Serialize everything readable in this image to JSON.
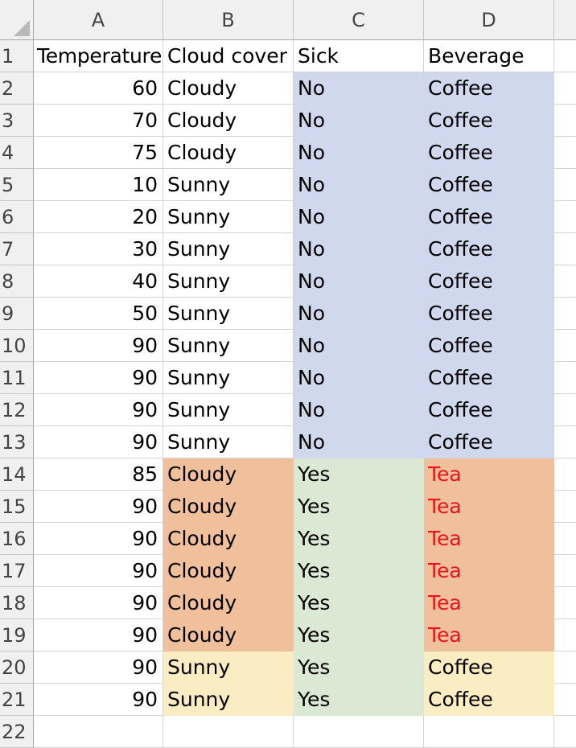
{
  "columns": [
    "A",
    "B",
    "C",
    "D"
  ],
  "rows": [
    {
      "num": "1",
      "cells": [
        "Temperature",
        "Cloud cover",
        "Sick",
        "Beverage"
      ],
      "fills": [
        "",
        "",
        "",
        ""
      ]
    },
    {
      "num": "2",
      "cells": [
        "60",
        "Cloudy",
        "No",
        "Coffee"
      ],
      "fills": [
        "",
        "",
        "#d0d8ee",
        "#d0d8ee"
      ]
    },
    {
      "num": "3",
      "cells": [
        "70",
        "Cloudy",
        "No",
        "Coffee"
      ],
      "fills": [
        "",
        "",
        "#d0d8ee",
        "#d0d8ee"
      ]
    },
    {
      "num": "4",
      "cells": [
        "75",
        "Cloudy",
        "No",
        "Coffee"
      ],
      "fills": [
        "",
        "",
        "#d0d8ee",
        "#d0d8ee"
      ]
    },
    {
      "num": "5",
      "cells": [
        "10",
        "Sunny",
        "No",
        "Coffee"
      ],
      "fills": [
        "",
        "",
        "#d0d8ee",
        "#d0d8ee"
      ]
    },
    {
      "num": "6",
      "cells": [
        "20",
        "Sunny",
        "No",
        "Coffee"
      ],
      "fills": [
        "",
        "",
        "#d0d8ee",
        "#d0d8ee"
      ]
    },
    {
      "num": "7",
      "cells": [
        "30",
        "Sunny",
        "No",
        "Coffee"
      ],
      "fills": [
        "",
        "",
        "#d0d8ee",
        "#d0d8ee"
      ]
    },
    {
      "num": "8",
      "cells": [
        "40",
        "Sunny",
        "No",
        "Coffee"
      ],
      "fills": [
        "",
        "",
        "#d0d8ee",
        "#d0d8ee"
      ]
    },
    {
      "num": "9",
      "cells": [
        "50",
        "Sunny",
        "No",
        "Coffee"
      ],
      "fills": [
        "",
        "",
        "#d0d8ee",
        "#d0d8ee"
      ]
    },
    {
      "num": "10",
      "cells": [
        "90",
        "Sunny",
        "No",
        "Coffee"
      ],
      "fills": [
        "",
        "",
        "#d0d8ee",
        "#d0d8ee"
      ]
    },
    {
      "num": "11",
      "cells": [
        "90",
        "Sunny",
        "No",
        "Coffee"
      ],
      "fills": [
        "",
        "",
        "#d0d8ee",
        "#d0d8ee"
      ]
    },
    {
      "num": "12",
      "cells": [
        "90",
        "Sunny",
        "No",
        "Coffee"
      ],
      "fills": [
        "",
        "",
        "#d0d8ee",
        "#d0d8ee"
      ]
    },
    {
      "num": "13",
      "cells": [
        "90",
        "Sunny",
        "No",
        "Coffee"
      ],
      "fills": [
        "",
        "",
        "#d0d8ee",
        "#d0d8ee"
      ]
    },
    {
      "num": "14",
      "cells": [
        "85",
        "Cloudy",
        "Yes",
        "Tea"
      ],
      "fills": [
        "",
        "#f0bf9b",
        "#dbe8d3",
        "#f0bf9b"
      ]
    },
    {
      "num": "15",
      "cells": [
        "90",
        "Cloudy",
        "Yes",
        "Tea"
      ],
      "fills": [
        "",
        "#f0bf9b",
        "#dbe8d3",
        "#f0bf9b"
      ]
    },
    {
      "num": "16",
      "cells": [
        "90",
        "Cloudy",
        "Yes",
        "Tea"
      ],
      "fills": [
        "",
        "#f0bf9b",
        "#dbe8d3",
        "#f0bf9b"
      ]
    },
    {
      "num": "17",
      "cells": [
        "90",
        "Cloudy",
        "Yes",
        "Tea"
      ],
      "fills": [
        "",
        "#f0bf9b",
        "#dbe8d3",
        "#f0bf9b"
      ]
    },
    {
      "num": "18",
      "cells": [
        "90",
        "Cloudy",
        "Yes",
        "Tea"
      ],
      "fills": [
        "",
        "#f0bf9b",
        "#dbe8d3",
        "#f0bf9b"
      ]
    },
    {
      "num": "19",
      "cells": [
        "90",
        "Cloudy",
        "Yes",
        "Tea"
      ],
      "fills": [
        "",
        "#f0bf9b",
        "#dbe8d3",
        "#f0bf9b"
      ]
    },
    {
      "num": "20",
      "cells": [
        "90",
        "Sunny",
        "Yes",
        "Coffee"
      ],
      "fills": [
        "",
        "#faedc4",
        "#dbe8d3",
        "#faedc4"
      ]
    },
    {
      "num": "21",
      "cells": [
        "90",
        "Sunny",
        "Yes",
        "Coffee"
      ],
      "fills": [
        "",
        "#faedc4",
        "#dbe8d3",
        "#faedc4"
      ]
    },
    {
      "num": "22",
      "cells": [
        "",
        "",
        "",
        ""
      ],
      "fills": [
        "",
        "",
        "",
        ""
      ]
    }
  ],
  "colors": {
    "tea_text": "#e8141b",
    "default_text": "#000000"
  }
}
